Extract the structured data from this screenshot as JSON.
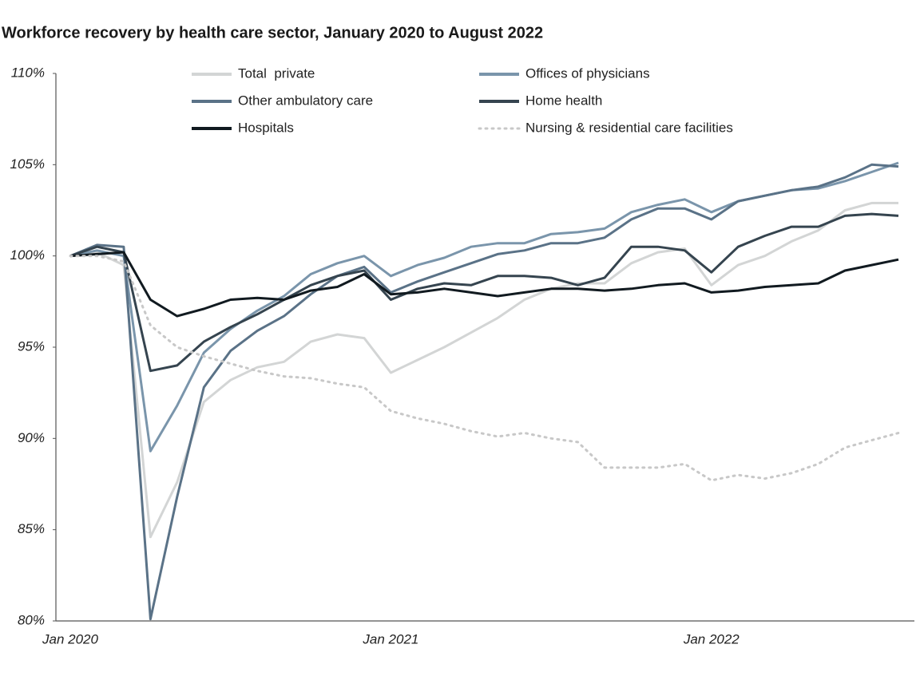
{
  "chart_data": {
    "type": "line",
    "title": "Workforce recovery by health care sector, January 2020 to August 2022",
    "categories": [
      "Jan 2020",
      null,
      null,
      null,
      null,
      null,
      null,
      null,
      null,
      null,
      null,
      null,
      "Jan 2021",
      null,
      null,
      null,
      null,
      null,
      null,
      null,
      null,
      null,
      null,
      null,
      "Jan 2022",
      null,
      null,
      null,
      null,
      null,
      null,
      null
    ],
    "ylim": [
      80,
      110
    ],
    "yticks": [
      {
        "value": 80,
        "label": "80%"
      },
      {
        "value": 85,
        "label": "85%"
      },
      {
        "value": 90,
        "label": "90%"
      },
      {
        "value": 95,
        "label": "95%"
      },
      {
        "value": 100,
        "label": "100%"
      },
      {
        "value": 105,
        "label": "105%"
      },
      {
        "value": 110,
        "label": "110%"
      }
    ],
    "grid": false,
    "legend": "top",
    "series": [
      {
        "name": "Total  private",
        "color": "#d3d5d5",
        "style": "solid",
        "values": [
          100,
          100.2,
          99.5,
          84.6,
          87.6,
          92.0,
          93.2,
          93.9,
          94.2,
          95.3,
          95.7,
          95.5,
          93.6,
          94.3,
          95.0,
          95.8,
          96.6,
          97.6,
          98.2,
          98.5,
          98.5,
          99.6,
          100.2,
          100.4,
          98.4,
          99.5,
          100.0,
          100.8,
          101.4,
          102.5,
          102.9,
          102.9
        ]
      },
      {
        "name": "Offices of physicians",
        "color": "#7a95ab",
        "style": "solid",
        "values": [
          100,
          100.3,
          100.0,
          89.3,
          91.8,
          94.7,
          96.0,
          97.0,
          97.8,
          99.0,
          99.6,
          100.0,
          98.9,
          99.5,
          99.9,
          100.5,
          100.7,
          100.7,
          101.2,
          101.3,
          101.5,
          102.4,
          102.8,
          103.1,
          102.4,
          103.0,
          103.3,
          103.6,
          103.7,
          104.1,
          104.6,
          105.1
        ]
      },
      {
        "name": "Other ambulatory care",
        "color": "#5a7287",
        "style": "solid",
        "values": [
          100,
          100.6,
          100.5,
          80.1,
          86.8,
          92.8,
          94.8,
          95.9,
          96.7,
          97.9,
          98.9,
          99.4,
          98.0,
          98.6,
          99.1,
          99.6,
          100.1,
          100.3,
          100.7,
          100.7,
          101.0,
          102.0,
          102.6,
          102.6,
          102.0,
          103.0,
          103.3,
          103.6,
          103.8,
          104.3,
          105.0,
          104.9
        ]
      },
      {
        "name": "Home health",
        "color": "#35444f",
        "style": "solid",
        "values": [
          100,
          100.5,
          100.2,
          93.7,
          94.0,
          95.3,
          96.1,
          96.8,
          97.6,
          98.4,
          98.9,
          99.2,
          97.6,
          98.2,
          98.5,
          98.4,
          98.9,
          98.9,
          98.8,
          98.4,
          98.8,
          100.5,
          100.5,
          100.3,
          99.1,
          100.5,
          101.1,
          101.6,
          101.6,
          102.2,
          102.3,
          102.2
        ]
      },
      {
        "name": "Hospitals",
        "color": "#111a20",
        "style": "solid",
        "values": [
          100,
          100.1,
          100.2,
          97.6,
          96.7,
          97.1,
          97.6,
          97.7,
          97.6,
          98.1,
          98.3,
          99.0,
          97.9,
          98.0,
          98.2,
          98.0,
          97.8,
          98.0,
          98.2,
          98.2,
          98.1,
          98.2,
          98.4,
          98.5,
          98.0,
          98.1,
          98.3,
          98.4,
          98.5,
          99.2,
          99.5,
          99.8
        ]
      },
      {
        "name": "Nursing & residential care facilities",
        "color": "#c8c8c8",
        "style": "dotted",
        "values": [
          100,
          100.0,
          99.7,
          96.2,
          95.0,
          94.5,
          94.1,
          93.7,
          93.4,
          93.3,
          93.0,
          92.8,
          91.5,
          91.1,
          90.8,
          90.4,
          90.1,
          90.3,
          90.0,
          89.8,
          88.4,
          88.4,
          88.4,
          88.6,
          87.7,
          88.0,
          87.8,
          88.1,
          88.6,
          89.5,
          89.9,
          90.3
        ]
      }
    ]
  }
}
